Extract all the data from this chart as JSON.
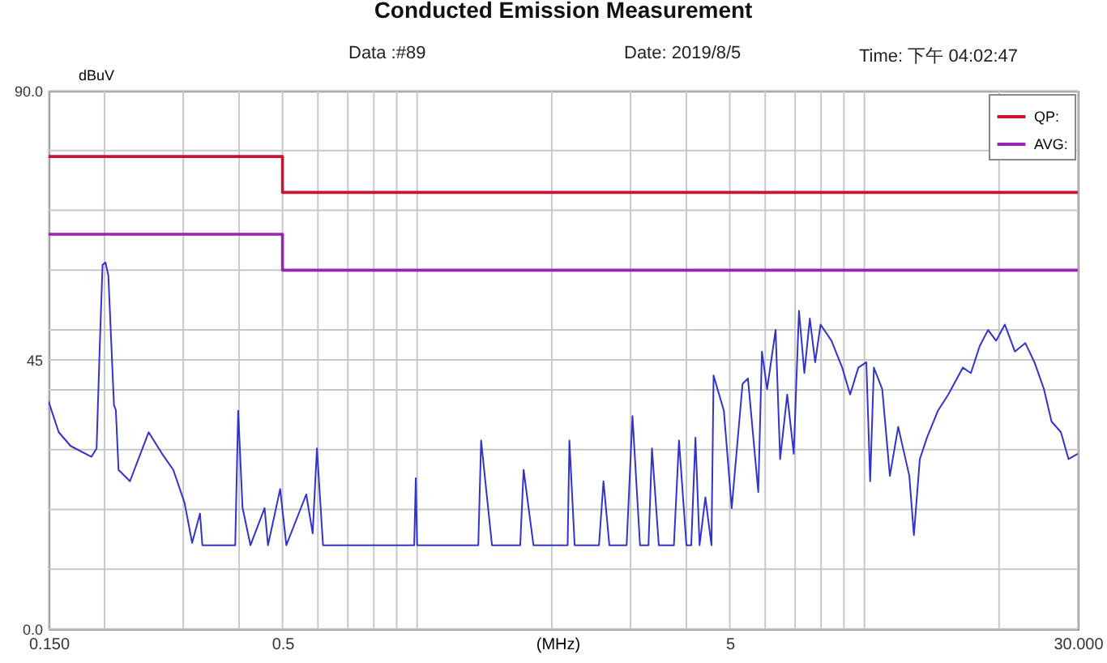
{
  "chart_data": {
    "type": "line",
    "title": "Conducted Emission Measurement",
    "annotations": [
      "Data :#89",
      "Date: 2019/8/5",
      "Time: 下午 04:02:47"
    ],
    "xlabel": "(MHz)",
    "ylabel": "dBuV",
    "log": "x",
    "grid": true,
    "legend": "top right",
    "xlim": [
      0.15,
      30
    ],
    "xticks": [
      {
        "value": 0.15,
        "label": "0.150"
      },
      {
        "value": 0.2,
        "label": null
      },
      {
        "value": 0.3,
        "label": null
      },
      {
        "value": 0.4,
        "label": null
      },
      0.5,
      {
        "value": 0.6,
        "label": null
      },
      {
        "value": 0.7,
        "label": null
      },
      {
        "value": 0.8,
        "label": null
      },
      {
        "value": 0.9,
        "label": null
      },
      {
        "value": 1,
        "label": null
      },
      {
        "value": 2,
        "label": null
      },
      {
        "value": 3,
        "label": null
      },
      {
        "value": 4,
        "label": null
      },
      5,
      {
        "value": 6,
        "label": null
      },
      {
        "value": 7,
        "label": null
      },
      {
        "value": 8,
        "label": null
      },
      {
        "value": 9,
        "label": null
      },
      {
        "value": 10,
        "label": null
      },
      {
        "value": 20,
        "label": null
      },
      {
        "value": 30,
        "label": "30.000"
      }
    ],
    "ylim": [
      0,
      90
    ],
    "yticks": [
      {
        "value": 0,
        "label": "0.0"
      },
      {
        "value": 10,
        "label": null
      },
      {
        "value": 20,
        "label": null
      },
      {
        "value": 30,
        "label": null
      },
      {
        "value": 40,
        "label": null
      },
      45,
      {
        "value": 50,
        "label": null
      },
      {
        "value": 60,
        "label": null
      },
      {
        "value": 70,
        "label": null
      },
      {
        "value": 80,
        "label": null
      },
      {
        "value": 90,
        "label": "90.0"
      }
    ],
    "series": [
      {
        "name": "QP:",
        "color": "#cc1133",
        "x": [
          0.15,
          0.5,
          0.5,
          30
        ],
        "values": [
          79,
          79,
          73,
          73
        ]
      },
      {
        "name": "AVG:",
        "color": "#9922bb",
        "x": [
          0.15,
          0.5,
          0.5,
          30
        ],
        "values": [
          66,
          66,
          60,
          60
        ]
      },
      {
        "color": "#3333cc",
        "x": [
          0.15,
          0.158,
          0.168,
          0.187,
          0.192,
          0.195,
          0.198,
          0.201,
          0.204,
          0.21,
          0.212,
          0.215,
          0.228,
          0.251,
          0.269,
          0.285,
          0.302,
          0.314,
          0.327,
          0.331,
          0.392,
          0.398,
          0.407,
          0.424,
          0.456,
          0.464,
          0.494,
          0.51,
          0.565,
          0.584,
          0.597,
          0.616,
          0.985,
          0.993,
          1.0,
          1.37,
          1.39,
          1.47,
          1.7,
          1.73,
          1.82,
          2.17,
          2.19,
          2.25,
          2.55,
          2.61,
          2.69,
          2.94,
          3.03,
          3.15,
          3.29,
          3.35,
          3.47,
          3.75,
          3.85,
          4.0,
          4.1,
          4.19,
          4.28,
          4.41,
          4.55,
          4.6,
          4.85,
          5.05,
          5.34,
          5.49,
          5.79,
          5.9,
          6.06,
          6.33,
          6.48,
          6.72,
          6.95,
          7.14,
          7.34,
          7.55,
          7.76,
          7.98,
          8.44,
          8.92,
          9.29,
          9.69,
          10.1,
          10.3,
          10.5,
          10.96,
          11.4,
          11.9,
          12.6,
          12.9,
          13.3,
          13.8,
          14.6,
          15.4,
          16.6,
          17.3,
          18.1,
          18.9,
          19.7,
          20.6,
          21.7,
          22.9,
          24.0,
          25.2,
          26.2,
          27.5,
          28.6,
          30
        ],
        "values": [
          38.0,
          32.9,
          30.6,
          28.8,
          30.2,
          46.4,
          60.9,
          61.3,
          59.1,
          37.4,
          36.6,
          26.6,
          24.7,
          32.9,
          29.3,
          26.6,
          21.1,
          14.4,
          19.3,
          14,
          14,
          36.5,
          20.3,
          14,
          20.2,
          14,
          23.4,
          14,
          22.5,
          16,
          30.2,
          14,
          14,
          25.2,
          14,
          14,
          31.5,
          14,
          14,
          26.6,
          14,
          14,
          31.5,
          14,
          14,
          24.7,
          14,
          14,
          35.6,
          14,
          14,
          30.2,
          14,
          14,
          31.5,
          14,
          14,
          32.0,
          14,
          22.0,
          14,
          42.4,
          36.5,
          20.2,
          41.0,
          41.9,
          22.9,
          46.4,
          40.1,
          50.0,
          28.4,
          39.2,
          29.3,
          53.2,
          42.8,
          51.9,
          44.6,
          50.9,
          48.2,
          43.7,
          39.2,
          43.7,
          44.6,
          24.7,
          43.7,
          40.1,
          25.6,
          33.8,
          25.6,
          15.7,
          28.4,
          32.0,
          36.5,
          39.2,
          43.7,
          42.8,
          47.3,
          50.0,
          48.2,
          50.9,
          46.4,
          47.8,
          44.6,
          40.1,
          34.7,
          32.9,
          28.4,
          29.3
        ]
      }
    ]
  }
}
